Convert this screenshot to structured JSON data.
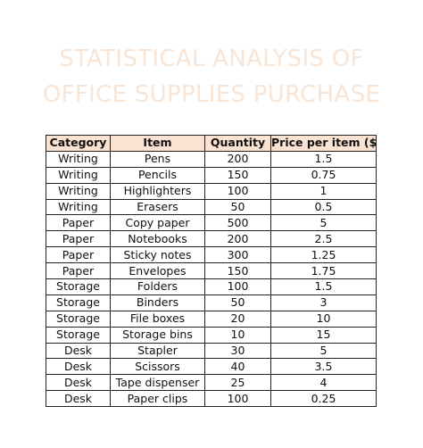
{
  "title": {
    "line1": "STATISTICAL ANALYSIS OF",
    "line2": "OFFICE SUPPLIES PURCHASE"
  },
  "table": {
    "headers": [
      "Category",
      "Item",
      "Quantity",
      "Price per item ($)"
    ],
    "rows": [
      [
        "Writing",
        "Pens",
        "200",
        "1.5"
      ],
      [
        "Writing",
        "Pencils",
        "150",
        "0.75"
      ],
      [
        "Writing",
        "Highlighters",
        "100",
        "1"
      ],
      [
        "Writing",
        "Erasers",
        "50",
        "0.5"
      ],
      [
        "Paper",
        "Copy paper",
        "500",
        "5"
      ],
      [
        "Paper",
        "Notebooks",
        "200",
        "2.5"
      ],
      [
        "Paper",
        "Sticky notes",
        "300",
        "1.25"
      ],
      [
        "Paper",
        "Envelopes",
        "150",
        "1.75"
      ],
      [
        "Storage",
        "Folders",
        "100",
        "1.5"
      ],
      [
        "Storage",
        "Binders",
        "50",
        "3"
      ],
      [
        "Storage",
        "File boxes",
        "20",
        "10"
      ],
      [
        "Storage",
        "Storage bins",
        "10",
        "15"
      ],
      [
        "Desk",
        "Stapler",
        "30",
        "5"
      ],
      [
        "Desk",
        "Scissors",
        "40",
        "3.5"
      ],
      [
        "Desk",
        "Tape dispenser",
        "25",
        "4"
      ],
      [
        "Desk",
        "Paper clips",
        "100",
        "0.25"
      ]
    ]
  },
  "colors": {
    "header_fill": "#fbe3d3",
    "title_text": "#f8e5d6",
    "border": "#222222"
  }
}
